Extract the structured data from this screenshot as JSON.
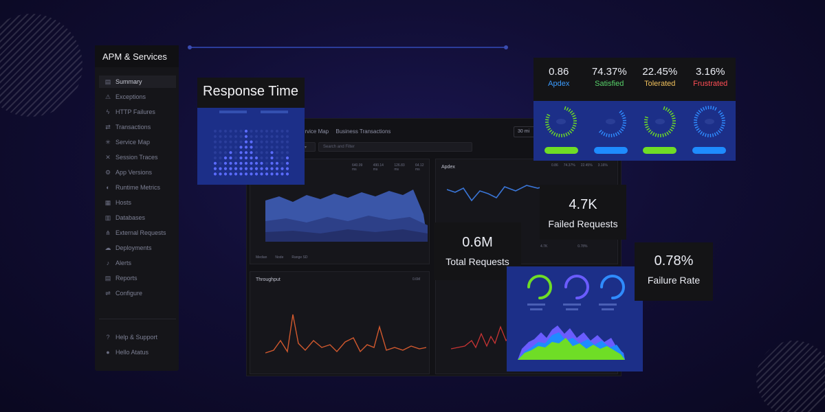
{
  "sidebar": {
    "title": "APM & Services",
    "items": [
      {
        "label": "Summary",
        "icon": "summary-icon",
        "glyph": "▤"
      },
      {
        "label": "Exceptions",
        "icon": "warning-icon",
        "glyph": "⚠"
      },
      {
        "label": "HTTP Failures",
        "icon": "bolt-icon",
        "glyph": "ϟ"
      },
      {
        "label": "Transactions",
        "icon": "transfer-icon",
        "glyph": "⇄"
      },
      {
        "label": "Service Map",
        "icon": "network-icon",
        "glyph": "✳"
      },
      {
        "label": "Session Traces",
        "icon": "traces-icon",
        "glyph": "✕"
      },
      {
        "label": "App Versions",
        "icon": "versions-icon",
        "glyph": "⚙"
      },
      {
        "label": "Runtime Metrics",
        "icon": "globe-icon",
        "glyph": "◐"
      },
      {
        "label": "Hosts",
        "icon": "grid-icon",
        "glyph": "▦"
      },
      {
        "label": "Databases",
        "icon": "database-icon",
        "glyph": "▥"
      },
      {
        "label": "External Requests",
        "icon": "tree-icon",
        "glyph": "⋔"
      },
      {
        "label": "Deployments",
        "icon": "cloud-icon",
        "glyph": "☁"
      },
      {
        "label": "Alerts",
        "icon": "bell-icon",
        "glyph": "♪"
      },
      {
        "label": "Reports",
        "icon": "report-icon",
        "glyph": "▤"
      },
      {
        "label": "Configure",
        "icon": "sliders-icon",
        "glyph": "⇌"
      }
    ],
    "footer": [
      {
        "label": "Help & Support",
        "icon": "help-icon",
        "glyph": "?"
      },
      {
        "label": "Hello Atatus",
        "icon": "user-icon",
        "glyph": "●"
      }
    ]
  },
  "dashboard": {
    "tabs": [
      "ervice Map",
      "Business Transactions"
    ],
    "time_button": "30 mi",
    "filter_placeholder": "Search and Filter",
    "panels": {
      "response": {
        "stats": [
          "640.09 ms",
          "490.14 ms",
          "126.83 ms",
          "64.12 ms"
        ]
      },
      "apdex": {
        "title": "Apdex",
        "values": [
          "0.86",
          "74.37%",
          "22.45%",
          "3.16%"
        ]
      },
      "throughput": {
        "title": "Throughput",
        "value": "0.6M"
      },
      "failure": {
        "values": [
          "4.7K",
          "0.78%"
        ]
      }
    },
    "legend": [
      "Median",
      "Node",
      "Range SD"
    ]
  },
  "response_time_card": {
    "title": "Response Time"
  },
  "apdex_card": {
    "metrics": [
      {
        "value": "0.86",
        "label": "Apdex",
        "color": "#3b9cff"
      },
      {
        "value": "74.37%",
        "label": "Satisfied",
        "color": "#58d36a"
      },
      {
        "value": "22.45%",
        "label": "Tolerated",
        "color": "#f1c15c"
      },
      {
        "value": "3.16%",
        "label": "Frustrated",
        "color": "#ff4e55"
      }
    ]
  },
  "stats": {
    "failed_requests": {
      "value": "4.7K",
      "label": "Failed Requests"
    },
    "total_requests": {
      "value": "0.6M",
      "label": "Total Requests"
    },
    "failure_rate": {
      "value": "0.78%",
      "label": "Failure Rate"
    }
  },
  "colors": {
    "accent_blue": "#3b6bff",
    "green": "#6fdd26",
    "purple": "#6a5cff"
  }
}
